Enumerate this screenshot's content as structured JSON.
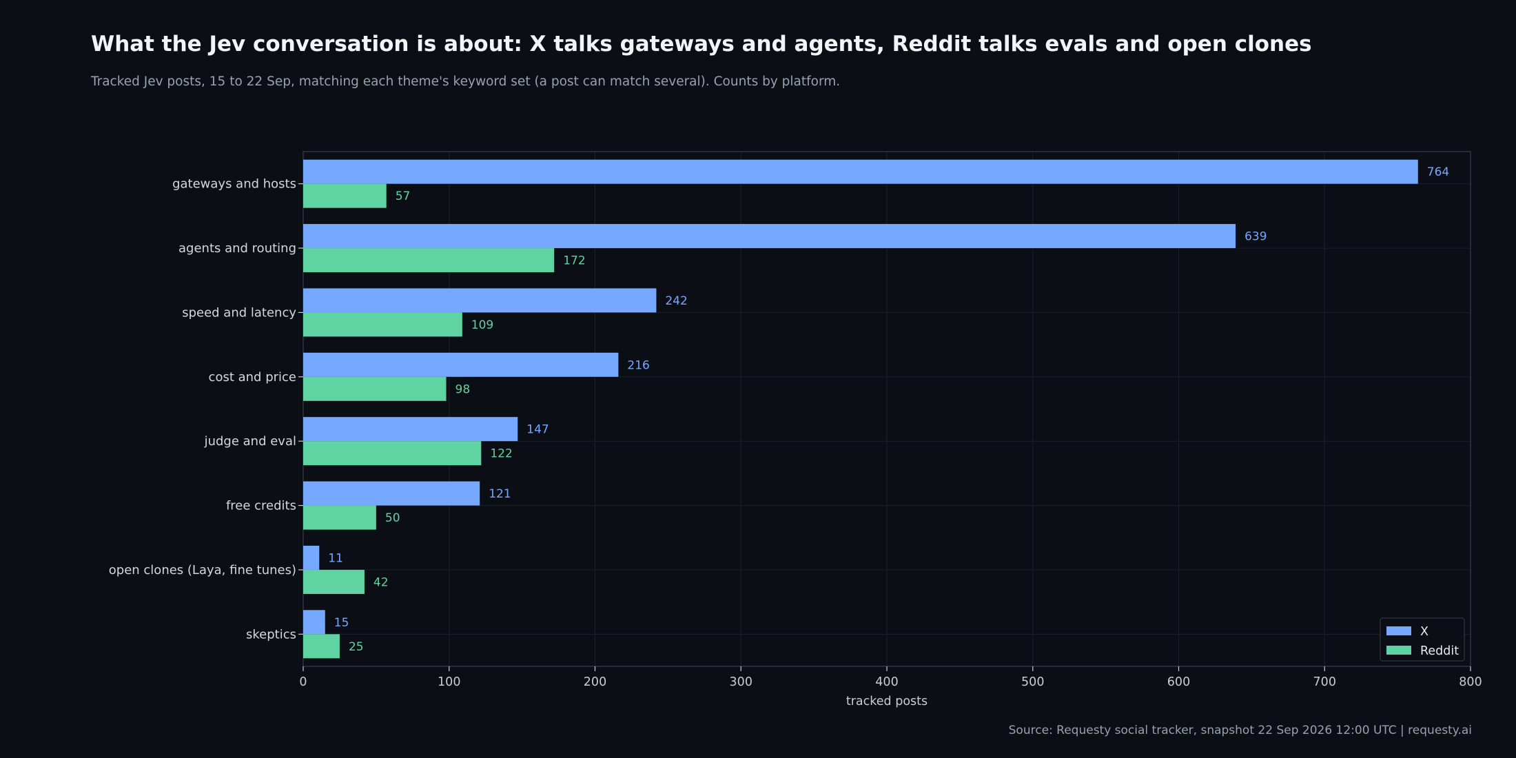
{
  "header": {
    "title": "What the Jev conversation is about: X talks gateways and agents, Reddit talks evals and open clones",
    "subtitle": "Tracked Jev posts, 15 to 22 Sep, matching each theme's keyword set (a post can match several). Counts by platform."
  },
  "footer": {
    "source": "Source: Requesty social tracker, snapshot 22 Sep 2026 12:00 UTC  |  requesty.ai"
  },
  "chart_data": {
    "type": "bar",
    "orientation": "horizontal",
    "title": "What the Jev conversation is about: X talks gateways and agents, Reddit talks evals and open clones",
    "subtitle": "Tracked Jev posts, 15 to 22 Sep, matching each theme's keyword set (a post can match several). Counts by platform.",
    "xlabel": "tracked posts",
    "ylabel": "",
    "xlim": [
      0,
      800
    ],
    "xticks": [
      0,
      100,
      200,
      300,
      400,
      500,
      600,
      700,
      800
    ],
    "grid": true,
    "legend_position": "bottom-right",
    "categories": [
      "gateways and hosts",
      "agents and routing",
      "speed and latency",
      "cost and price",
      "judge and eval",
      "free credits",
      "open clones (Laya, fine tunes)",
      "skeptics"
    ],
    "series": [
      {
        "name": "X",
        "color": "#76a8ff",
        "values": [
          764,
          639,
          242,
          216,
          147,
          121,
          11,
          15
        ]
      },
      {
        "name": "Reddit",
        "color": "#5fd4a2",
        "values": [
          57,
          172,
          109,
          98,
          122,
          50,
          42,
          25
        ]
      }
    ]
  }
}
